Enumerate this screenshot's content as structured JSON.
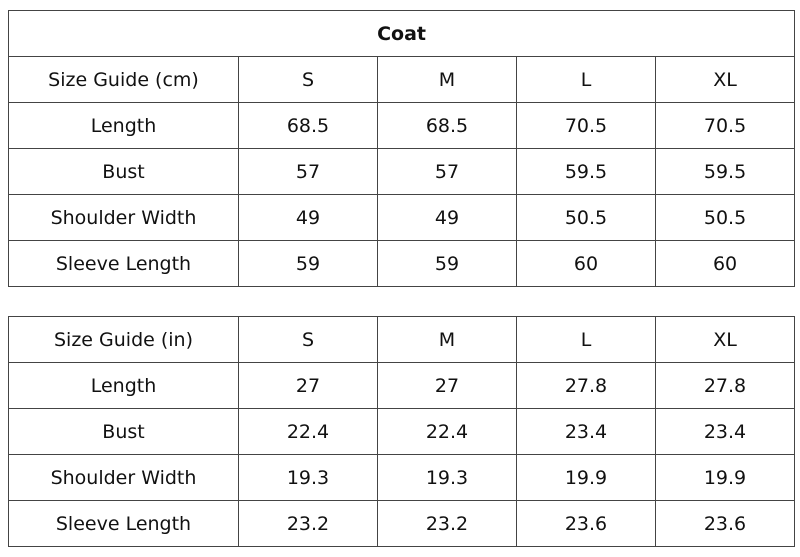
{
  "title": "Coat",
  "tables": [
    {
      "header": [
        "Size Guide (cm)",
        "S",
        "M",
        "L",
        "XL"
      ],
      "rows": [
        [
          "Length",
          "68.5",
          "68.5",
          "70.5",
          "70.5"
        ],
        [
          "Bust",
          "57",
          "57",
          "59.5",
          "59.5"
        ],
        [
          "Shoulder Width",
          "49",
          "49",
          "50.5",
          "50.5"
        ],
        [
          "Sleeve Length",
          "59",
          "59",
          "60",
          "60"
        ]
      ]
    },
    {
      "header": [
        "Size Guide (in)",
        "S",
        "M",
        "L",
        "XL"
      ],
      "rows": [
        [
          "Length",
          "27",
          "27",
          "27.8",
          "27.8"
        ],
        [
          "Bust",
          "22.4",
          "22.4",
          "23.4",
          "23.4"
        ],
        [
          "Shoulder Width",
          "19.3",
          "19.3",
          "19.9",
          "19.9"
        ],
        [
          "Sleeve Length",
          "23.2",
          "23.2",
          "23.6",
          "23.6"
        ]
      ]
    }
  ]
}
